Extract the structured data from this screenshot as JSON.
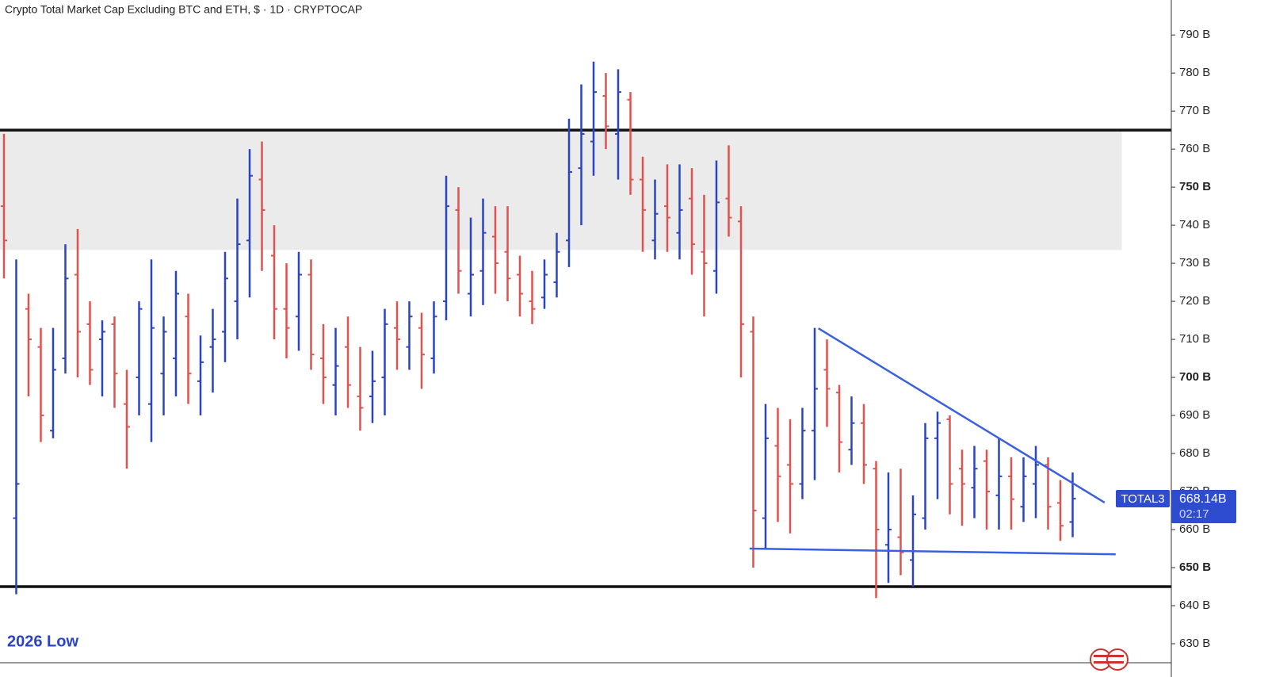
{
  "chart_data": {
    "type": "ohlc",
    "title": "Crypto Total Market Cap Excluding BTC and ETH, $ · 1D · CRYPTOCAP",
    "annotation": "2026 Low",
    "up_color": "#2b44c4",
    "down_color": "#e0524f",
    "open": [
      745,
      663,
      718,
      708,
      686,
      705,
      727,
      714,
      710,
      714,
      693,
      700,
      693,
      701,
      705,
      716,
      699,
      708,
      712,
      720,
      736,
      752,
      732,
      718,
      716,
      727,
      705,
      698,
      708,
      695,
      695,
      700,
      713,
      708,
      713,
      705,
      720,
      744,
      722,
      728,
      737,
      733,
      727,
      720,
      721,
      725,
      736,
      755,
      762,
      774,
      764,
      773,
      752,
      736,
      745,
      738,
      747,
      733,
      728,
      747,
      741,
      712,
      663,
      682,
      677,
      672,
      686,
      702,
      696,
      681,
      688,
      676,
      656,
      658,
      652,
      663,
      684,
      689,
      676,
      671,
      678,
      669,
      674,
      666,
      672,
      677,
      667,
      662
    ],
    "high": [
      764,
      731,
      722,
      713,
      713,
      735,
      739,
      720,
      715,
      716,
      702,
      720,
      731,
      716,
      728,
      722,
      711,
      718,
      733,
      747,
      760,
      762,
      740,
      730,
      733,
      731,
      714,
      713,
      716,
      708,
      707,
      718,
      720,
      720,
      717,
      720,
      753,
      750,
      742,
      747,
      745,
      745,
      732,
      728,
      731,
      738,
      768,
      777,
      783,
      780,
      781,
      775,
      758,
      752,
      756,
      756,
      755,
      748,
      757,
      761,
      745,
      716,
      693,
      692,
      689,
      692,
      713,
      710,
      698,
      695,
      693,
      678,
      675,
      676,
      669,
      688,
      691,
      690,
      681,
      682,
      681,
      684,
      679,
      679,
      682,
      679,
      673,
      675
    ],
    "low": [
      726,
      643,
      695,
      683,
      684,
      701,
      700,
      698,
      695,
      692,
      676,
      690,
      683,
      690,
      695,
      693,
      690,
      696,
      704,
      710,
      721,
      728,
      710,
      705,
      707,
      702,
      693,
      690,
      692,
      686,
      688,
      690,
      702,
      702,
      697,
      701,
      715,
      722,
      716,
      719,
      722,
      720,
      716,
      714,
      718,
      721,
      729,
      740,
      753,
      760,
      752,
      748,
      733,
      731,
      733,
      731,
      727,
      716,
      722,
      737,
      700,
      650,
      655,
      662,
      659,
      668,
      673,
      687,
      675,
      677,
      672,
      642,
      646,
      648,
      645,
      660,
      668,
      664,
      661,
      663,
      660,
      660,
      660,
      662,
      663,
      660,
      657,
      658
    ],
    "close": [
      736,
      672,
      710,
      690,
      702,
      726,
      712,
      702,
      712,
      701,
      687,
      718,
      713,
      712,
      722,
      701,
      704,
      710,
      726,
      735,
      753,
      744,
      718,
      713,
      727,
      706,
      700,
      703,
      698,
      692,
      699,
      714,
      710,
      716,
      706,
      716,
      745,
      728,
      727,
      738,
      730,
      726,
      722,
      718,
      727,
      733,
      754,
      764,
      775,
      766,
      775,
      752,
      744,
      743,
      742,
      744,
      735,
      730,
      746,
      742,
      714,
      665,
      684,
      674,
      672,
      686,
      697,
      697,
      683,
      688,
      677,
      660,
      660,
      654,
      664,
      684,
      688,
      672,
      672,
      676,
      670,
      674,
      668,
      674,
      677,
      666,
      661,
      668.14
    ],
    "ylim": [
      625,
      799.2
    ],
    "yticks": [
      {
        "value": 630,
        "label": "630 B"
      },
      {
        "value": 640,
        "label": "640 B"
      },
      {
        "value": 650,
        "label": "650 B",
        "bold": true
      },
      {
        "value": 660,
        "label": "660 B"
      },
      {
        "value": 670,
        "label": "670 B"
      },
      {
        "value": 680,
        "label": "680 B"
      },
      {
        "value": 690,
        "label": "690 B"
      },
      {
        "value": 700,
        "label": "700 B",
        "bold": true
      },
      {
        "value": 710,
        "label": "710 B"
      },
      {
        "value": 720,
        "label": "720 B"
      },
      {
        "value": 730,
        "label": "730 B"
      },
      {
        "value": 740,
        "label": "740 B"
      },
      {
        "value": 750,
        "label": "750 B",
        "bold": true
      },
      {
        "value": 760,
        "label": "760 B"
      },
      {
        "value": 770,
        "label": "770 B"
      },
      {
        "value": 780,
        "label": "780 B"
      },
      {
        "value": 790,
        "label": "790 B"
      }
    ],
    "levels": [
      765,
      645
    ],
    "zone": {
      "from": 733.5,
      "to": 765,
      "end_bar": 91
    },
    "trendlines": [
      {
        "x": [
          66.3,
          89.6
        ],
        "y": [
          712.9,
          667.1
        ],
        "color": "#3a5fe0"
      },
      {
        "x": [
          60.7,
          90.5
        ],
        "y": [
          655,
          653.5
        ],
        "color": "#3a5fe0"
      }
    ],
    "price_tag": {
      "name": "TOTAL3",
      "value_label": "668.14B",
      "countdown": "02:17",
      "color": "#2d4ccf"
    }
  }
}
